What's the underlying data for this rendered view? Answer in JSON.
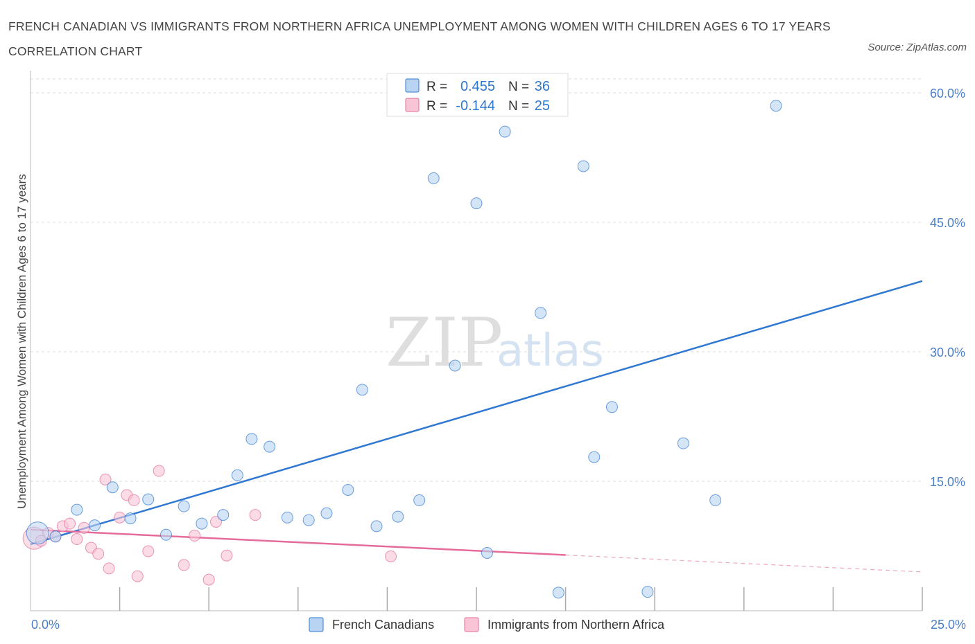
{
  "header": {
    "title": "FRENCH CANADIAN VS IMMIGRANTS FROM NORTHERN AFRICA UNEMPLOYMENT AMONG WOMEN WITH CHILDREN AGES 6 TO 17 YEARS CORRELATION CHART",
    "source": "Source: ZipAtlas.com"
  },
  "watermark": {
    "zip": "ZIP",
    "atlas": "atlas"
  },
  "colors": {
    "blue": "#2f78d2",
    "blue_fill": "#b9d3f3",
    "pink": "#e46b9a",
    "pink_fill": "#f8c4d6",
    "axis_label": "#4a7fc8",
    "grid": "#dddddd"
  },
  "stats_legend": {
    "rows": [
      {
        "r_label": "R =",
        "r_value": "0.455",
        "n_label": "N =",
        "n_value": "36"
      },
      {
        "r_label": "R =",
        "r_value": "-0.144",
        "n_label": "N =",
        "n_value": "25"
      }
    ]
  },
  "bottom_legend": [
    "French Canadians",
    "Immigrants from Northern Africa"
  ],
  "chart_data": {
    "type": "scatter",
    "title": "FRENCH CANADIAN VS IMMIGRANTS FROM NORTHERN AFRICA UNEMPLOYMENT AMONG WOMEN WITH CHILDREN AGES 6 TO 17 YEARS CORRELATION CHART",
    "xlabel": "",
    "ylabel": "Unemployment Among Women with Children Ages 6 to 17 years",
    "xlim": [
      0,
      25
    ],
    "ylim": [
      0,
      60
    ],
    "x_tick_labels": [
      "0.0%",
      "25.0%"
    ],
    "y_ticks": [
      15,
      30,
      45,
      60
    ],
    "y_tick_labels": [
      "15.0%",
      "30.0%",
      "45.0%",
      "60.0%"
    ],
    "grid": true,
    "legend_position": "bottom",
    "series": [
      {
        "name": "French Canadians",
        "R": 0.455,
        "N": 36,
        "trend": {
          "x": [
            0,
            25
          ],
          "y": [
            7.7,
            38.2
          ],
          "dashed_from": null
        },
        "points": [
          {
            "x": 0.2,
            "y": 9.0,
            "big": true
          },
          {
            "x": 0.7,
            "y": 8.6
          },
          {
            "x": 1.3,
            "y": 11.7
          },
          {
            "x": 1.8,
            "y": 9.9
          },
          {
            "x": 2.3,
            "y": 14.3
          },
          {
            "x": 2.8,
            "y": 10.7
          },
          {
            "x": 3.3,
            "y": 12.9
          },
          {
            "x": 3.8,
            "y": 8.8
          },
          {
            "x": 4.3,
            "y": 12.1
          },
          {
            "x": 4.8,
            "y": 10.1
          },
          {
            "x": 5.4,
            "y": 11.1
          },
          {
            "x": 5.8,
            "y": 15.7
          },
          {
            "x": 6.2,
            "y": 19.9
          },
          {
            "x": 6.7,
            "y": 19.0
          },
          {
            "x": 7.2,
            "y": 10.8
          },
          {
            "x": 7.8,
            "y": 10.5
          },
          {
            "x": 8.3,
            "y": 11.3
          },
          {
            "x": 8.9,
            "y": 14.0
          },
          {
            "x": 9.3,
            "y": 25.6
          },
          {
            "x": 9.7,
            "y": 9.8
          },
          {
            "x": 10.3,
            "y": 10.9
          },
          {
            "x": 10.9,
            "y": 12.8
          },
          {
            "x": 11.3,
            "y": 50.1
          },
          {
            "x": 11.9,
            "y": 28.4
          },
          {
            "x": 12.5,
            "y": 47.2
          },
          {
            "x": 12.8,
            "y": 6.7
          },
          {
            "x": 13.3,
            "y": 55.5
          },
          {
            "x": 14.3,
            "y": 34.5
          },
          {
            "x": 14.8,
            "y": 2.1
          },
          {
            "x": 15.5,
            "y": 51.5
          },
          {
            "x": 15.8,
            "y": 17.8
          },
          {
            "x": 16.3,
            "y": 23.6
          },
          {
            "x": 17.3,
            "y": 2.2
          },
          {
            "x": 18.3,
            "y": 19.4
          },
          {
            "x": 19.2,
            "y": 12.8
          },
          {
            "x": 20.9,
            "y": 58.5
          }
        ]
      },
      {
        "name": "Immigrants from Northern Africa",
        "R": -0.144,
        "N": 25,
        "trend": {
          "x": [
            0,
            25
          ],
          "y": [
            9.4,
            4.5
          ],
          "dashed_from": 15.0
        },
        "points": [
          {
            "x": 0.1,
            "y": 8.4,
            "big": true
          },
          {
            "x": 0.3,
            "y": 8.1
          },
          {
            "x": 0.5,
            "y": 9.0
          },
          {
            "x": 0.7,
            "y": 8.6
          },
          {
            "x": 0.9,
            "y": 9.8
          },
          {
            "x": 1.1,
            "y": 10.1
          },
          {
            "x": 1.3,
            "y": 8.3
          },
          {
            "x": 1.5,
            "y": 9.6
          },
          {
            "x": 1.7,
            "y": 7.3
          },
          {
            "x": 1.9,
            "y": 6.6
          },
          {
            "x": 2.1,
            "y": 15.2
          },
          {
            "x": 2.2,
            "y": 4.9
          },
          {
            "x": 2.5,
            "y": 10.8
          },
          {
            "x": 2.7,
            "y": 13.4
          },
          {
            "x": 2.9,
            "y": 12.8
          },
          {
            "x": 3.0,
            "y": 4.0
          },
          {
            "x": 3.3,
            "y": 6.9
          },
          {
            "x": 3.6,
            "y": 16.2
          },
          {
            "x": 4.3,
            "y": 5.3
          },
          {
            "x": 4.6,
            "y": 8.7
          },
          {
            "x": 5.0,
            "y": 3.6
          },
          {
            "x": 5.2,
            "y": 10.3
          },
          {
            "x": 5.5,
            "y": 6.4
          },
          {
            "x": 6.3,
            "y": 11.1
          },
          {
            "x": 10.1,
            "y": 6.3
          }
        ]
      }
    ]
  }
}
